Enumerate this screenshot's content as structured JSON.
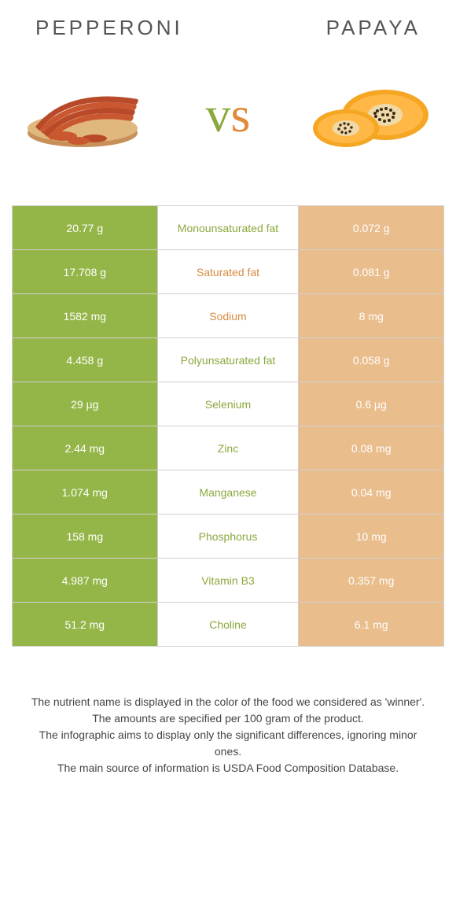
{
  "left_title": "Pepperoni",
  "right_title": "Papaya",
  "vs_v": "v",
  "vs_s": "s",
  "colors": {
    "left_bg": "#94b648",
    "right_bg": "#e9bd8c",
    "mid_text_winner_left": "#8aa83d",
    "mid_text_winner_right": "#d88a3f"
  },
  "rows": [
    {
      "left": "20.77 g",
      "mid": "Monounsaturated fat",
      "right": "0.072 g",
      "winner": "left"
    },
    {
      "left": "17.708 g",
      "mid": "Saturated fat",
      "right": "0.081 g",
      "winner": "right"
    },
    {
      "left": "1582 mg",
      "mid": "Sodium",
      "right": "8 mg",
      "winner": "right"
    },
    {
      "left": "4.458 g",
      "mid": "Polyunsaturated fat",
      "right": "0.058 g",
      "winner": "left"
    },
    {
      "left": "29 µg",
      "mid": "Selenium",
      "right": "0.6 µg",
      "winner": "left"
    },
    {
      "left": "2.44 mg",
      "mid": "Zinc",
      "right": "0.08 mg",
      "winner": "left"
    },
    {
      "left": "1.074 mg",
      "mid": "Manganese",
      "right": "0.04 mg",
      "winner": "left"
    },
    {
      "left": "158 mg",
      "mid": "Phosphorus",
      "right": "10 mg",
      "winner": "left"
    },
    {
      "left": "4.987 mg",
      "mid": "Vitamin B3",
      "right": "0.357 mg",
      "winner": "left"
    },
    {
      "left": "51.2 mg",
      "mid": "Choline",
      "right": "6.1 mg",
      "winner": "left"
    }
  ],
  "footer_lines": [
    "The nutrient name is displayed in the color of the food we considered as 'winner'.",
    "The amounts are specified per 100 gram of the product.",
    "The infographic aims to display only the significant differences, ignoring minor ones.",
    "The main source of information is USDA Food Composition Database."
  ]
}
